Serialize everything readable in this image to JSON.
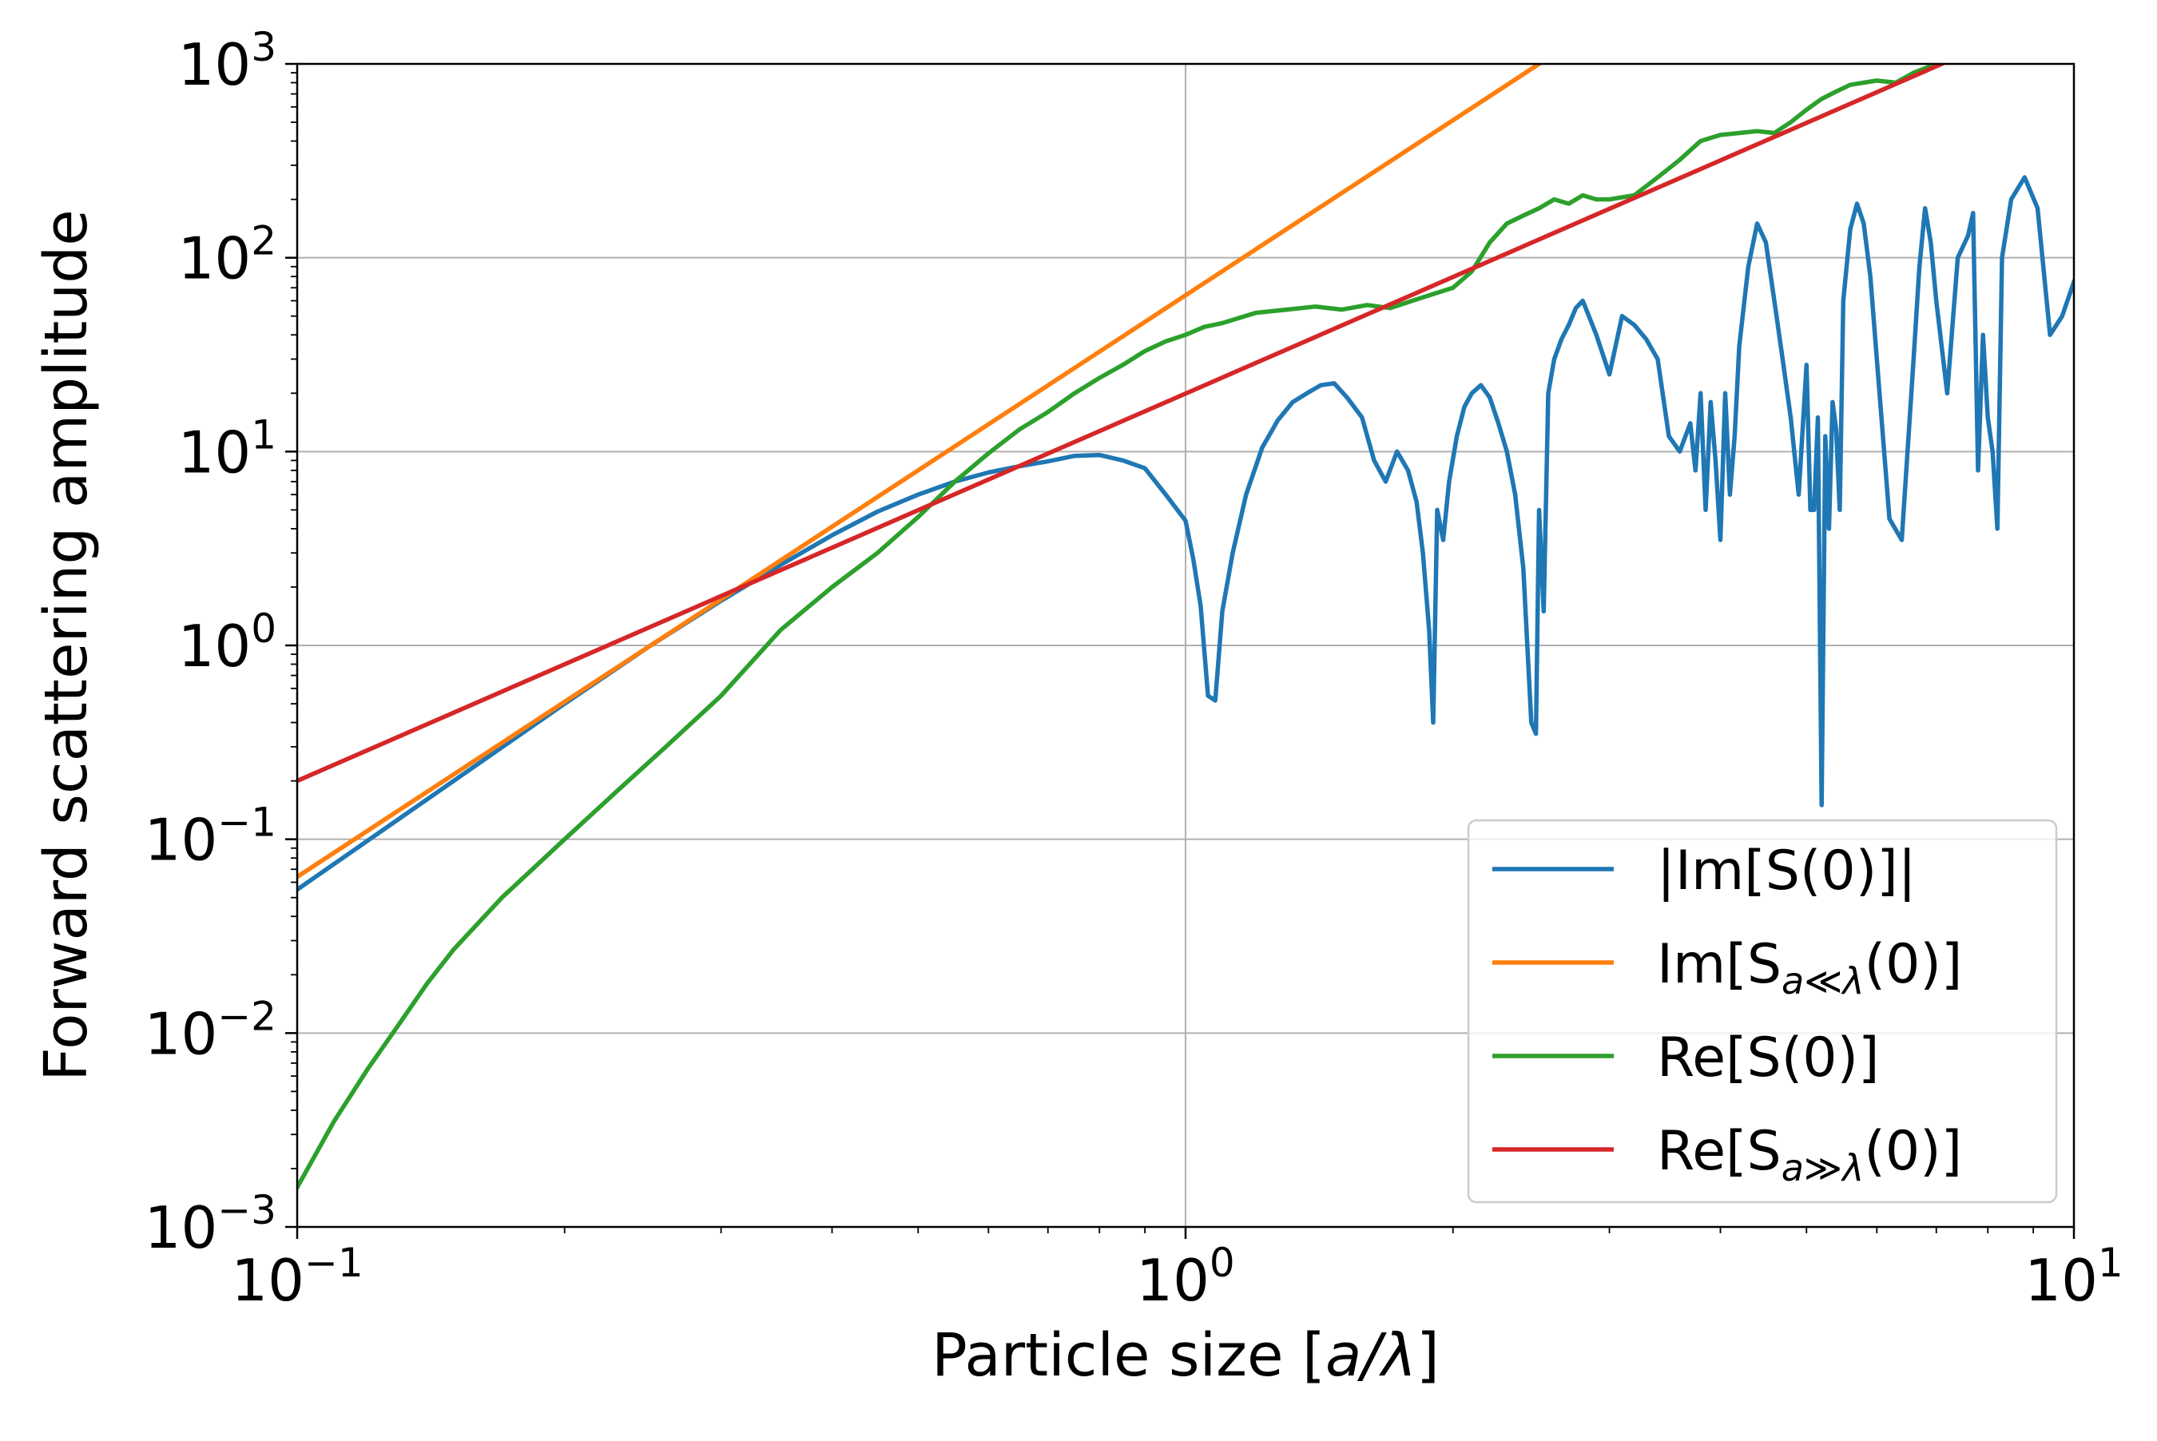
{
  "chart_data": {
    "type": "line",
    "xscale": "log",
    "yscale": "log",
    "xlim": [
      0.1,
      10
    ],
    "ylim": [
      0.001,
      1000
    ],
    "xlabel_pre": "Particle size [",
    "xlabel_var": "a/λ",
    "xlabel_post": "]",
    "ylabel": "Forward scattering amplitude",
    "grid": true,
    "legend_position": "lower right",
    "x_ticks": [
      {
        "mantissa": "10",
        "exp": "−1",
        "value": 0.1
      },
      {
        "mantissa": "10",
        "exp": "0",
        "value": 1
      },
      {
        "mantissa": "10",
        "exp": "1",
        "value": 10
      }
    ],
    "y_ticks": [
      {
        "mantissa": "10",
        "exp": "−3",
        "value": 0.001
      },
      {
        "mantissa": "10",
        "exp": "−2",
        "value": 0.01
      },
      {
        "mantissa": "10",
        "exp": "−1",
        "value": 0.1
      },
      {
        "mantissa": "10",
        "exp": "0",
        "value": 1
      },
      {
        "mantissa": "10",
        "exp": "1",
        "value": 10
      },
      {
        "mantissa": "10",
        "exp": "2",
        "value": 100
      },
      {
        "mantissa": "10",
        "exp": "3",
        "value": 1000
      }
    ],
    "series": [
      {
        "name": "|Im[S(0)]|",
        "label_main": "|Im[S(0)]|",
        "label_sub": "",
        "label_end": "",
        "color": "#1f77b4",
        "x": [
          0.1,
          0.15,
          0.2,
          0.25,
          0.3,
          0.35,
          0.4,
          0.45,
          0.5,
          0.55,
          0.6,
          0.65,
          0.7,
          0.75,
          0.8,
          0.85,
          0.9,
          0.95,
          1.0,
          1.02,
          1.04,
          1.06,
          1.08,
          1.1,
          1.13,
          1.17,
          1.22,
          1.27,
          1.32,
          1.37,
          1.42,
          1.47,
          1.52,
          1.58,
          1.63,
          1.68,
          1.73,
          1.78,
          1.82,
          1.85,
          1.88,
          1.9,
          1.92,
          1.95,
          1.98,
          2.02,
          2.06,
          2.1,
          2.15,
          2.2,
          2.25,
          2.3,
          2.35,
          2.4,
          2.45,
          2.48,
          2.5,
          2.53,
          2.56,
          2.6,
          2.65,
          2.7,
          2.75,
          2.8,
          2.9,
          3.0,
          3.1,
          3.2,
          3.3,
          3.4,
          3.5,
          3.6,
          3.7,
          3.75,
          3.8,
          3.85,
          3.9,
          3.95,
          4.0,
          4.05,
          4.1,
          4.15,
          4.2,
          4.3,
          4.4,
          4.5,
          4.6,
          4.7,
          4.8,
          4.9,
          5.0,
          5.05,
          5.1,
          5.15,
          5.2,
          5.25,
          5.3,
          5.35,
          5.4,
          5.45,
          5.5,
          5.6,
          5.7,
          5.8,
          5.9,
          6.0,
          6.2,
          6.4,
          6.6,
          6.7,
          6.8,
          6.9,
          7.0,
          7.2,
          7.4,
          7.6,
          7.7,
          7.8,
          7.9,
          8.0,
          8.1,
          8.2,
          8.3,
          8.5,
          8.8,
          9.1,
          9.4,
          9.7,
          10.0
        ],
        "y": [
          0.055,
          0.2,
          0.5,
          1.0,
          1.7,
          2.6,
          3.7,
          4.9,
          6.0,
          7.0,
          7.8,
          8.4,
          8.9,
          9.5,
          9.6,
          9.0,
          8.2,
          6.0,
          4.4,
          2.8,
          1.6,
          0.55,
          0.52,
          1.5,
          3.0,
          6.0,
          10.5,
          14.5,
          18.0,
          20.0,
          22.0,
          22.5,
          19.0,
          15.0,
          9.0,
          7.0,
          10.0,
          8.0,
          5.5,
          3.0,
          1.2,
          0.4,
          5.0,
          3.5,
          7.0,
          12.0,
          17.0,
          20.0,
          22.0,
          19.0,
          14.0,
          10.0,
          6.0,
          2.5,
          0.4,
          0.35,
          5.0,
          1.5,
          20.0,
          30.0,
          38.0,
          45.0,
          55.0,
          60.0,
          40.0,
          25.0,
          50.0,
          45.0,
          38.0,
          30.0,
          12.0,
          10.0,
          14.0,
          8.0,
          20.0,
          5.0,
          18.0,
          9.0,
          3.5,
          20.0,
          6.0,
          12.0,
          35.0,
          90.0,
          150.0,
          120.0,
          60.0,
          30.0,
          15.0,
          6.0,
          28.0,
          5.0,
          5.0,
          15.0,
          0.15,
          12.0,
          4.0,
          18.0,
          13.0,
          5.0,
          60.0,
          140.0,
          190.0,
          150.0,
          80.0,
          30.0,
          4.5,
          3.5,
          30.0,
          90.0,
          180.0,
          120.0,
          60.0,
          20.0,
          100.0,
          130.0,
          170.0,
          8.0,
          40.0,
          15.0,
          10.0,
          4.0,
          100.0,
          200.0,
          260.0,
          180.0,
          40.0,
          50.0,
          75.0
        ]
      },
      {
        "name": "Im[S_{a≪λ}(0)]",
        "label_main": "Im[S",
        "label_sub": "a≪λ",
        "label_end": "(0)]",
        "color": "#ff7f0e",
        "x": [
          0.1,
          2.5
        ],
        "y": [
          0.064,
          1000
        ]
      },
      {
        "name": "Re[S(0)]",
        "label_main": "Re[S(0)]",
        "label_sub": "",
        "label_end": "",
        "color": "#2ca02c",
        "x": [
          0.1,
          0.11,
          0.12,
          0.13,
          0.14,
          0.15,
          0.17,
          0.2,
          0.23,
          0.26,
          0.3,
          0.35,
          0.4,
          0.45,
          0.5,
          0.55,
          0.6,
          0.65,
          0.7,
          0.75,
          0.8,
          0.85,
          0.9,
          0.95,
          1.0,
          1.05,
          1.1,
          1.2,
          1.3,
          1.4,
          1.5,
          1.6,
          1.7,
          1.8,
          1.9,
          2.0,
          2.1,
          2.2,
          2.3,
          2.4,
          2.5,
          2.6,
          2.7,
          2.8,
          2.9,
          3.0,
          3.2,
          3.4,
          3.6,
          3.8,
          4.0,
          4.2,
          4.4,
          4.6,
          4.8,
          5.0,
          5.2,
          5.4,
          5.6,
          5.8,
          6.0,
          6.3,
          6.6,
          7.0
        ],
        "y": [
          0.0016,
          0.0035,
          0.0065,
          0.011,
          0.018,
          0.027,
          0.05,
          0.1,
          0.18,
          0.3,
          0.55,
          1.2,
          2.0,
          3.0,
          4.6,
          7.0,
          9.8,
          13.0,
          16.0,
          20.0,
          24.0,
          28.0,
          33.0,
          37.0,
          40.0,
          44.0,
          46.0,
          52.0,
          54.0,
          56.0,
          54.0,
          57.0,
          55.0,
          60.0,
          65.0,
          70.0,
          85.0,
          120.0,
          150.0,
          165.0,
          180.0,
          200.0,
          190.0,
          210.0,
          200.0,
          200.0,
          210.0,
          260.0,
          320.0,
          400.0,
          430.0,
          440.0,
          450.0,
          440.0,
          500.0,
          580.0,
          660.0,
          720.0,
          780.0,
          800.0,
          820.0,
          800.0,
          900.0,
          1000.0
        ]
      },
      {
        "name": "Re[S_{a≫λ}(0)]",
        "label_main": "Re[S",
        "label_sub": "a≫λ",
        "label_end": "(0)]",
        "color": "#d62728",
        "x": [
          0.1,
          7.1
        ],
        "y": [
          0.2,
          1000
        ]
      }
    ]
  }
}
